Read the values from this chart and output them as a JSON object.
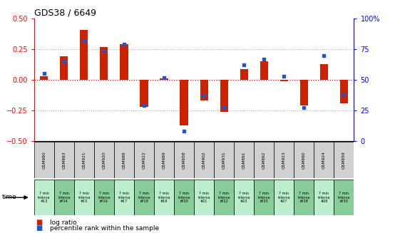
{
  "title": "GDS38 / 6649",
  "samples": [
    "GSM980",
    "GSM863",
    "GSM921",
    "GSM920",
    "GSM988",
    "GSM922",
    "GSM989",
    "GSM858",
    "GSM902",
    "GSM931",
    "GSM861",
    "GSM862",
    "GSM923",
    "GSM860",
    "GSM924",
    "GSM859"
  ],
  "log_ratio": [
    0.03,
    0.19,
    0.41,
    0.27,
    0.29,
    -0.22,
    0.01,
    -0.37,
    -0.17,
    -0.26,
    0.09,
    0.15,
    -0.01,
    -0.21,
    0.13,
    -0.19
  ],
  "percentile": [
    55,
    65,
    82,
    74,
    79,
    29,
    52,
    8,
    37,
    27,
    62,
    67,
    53,
    27,
    70,
    38
  ],
  "time_line1": [
    "7 min",
    "7 min",
    "7 min",
    "7 min",
    "7 min",
    "7 min",
    "7 min",
    "7 min",
    "7 min",
    "7 min",
    "7 min",
    "7 min",
    "7 min",
    "7 min",
    "7 min",
    "7 min"
  ],
  "time_line2": [
    "interva",
    "interva",
    "interva",
    "interva",
    "interva",
    "interva",
    "interva",
    "interva",
    "interva",
    "interva",
    "interva",
    "interva",
    "interva",
    "interva",
    "interva",
    "interva"
  ],
  "time_line3": [
    "#13",
    "l#14",
    "#15",
    "l#16",
    "#17",
    "l#18",
    "#19",
    "l#20",
    "#21",
    "l#22",
    "#23",
    "l#25",
    "#27",
    "l#28",
    "#29",
    "l#30"
  ],
  "ylim": [
    -0.5,
    0.5
  ],
  "y2lim": [
    0,
    100
  ],
  "bar_color": "#cc2200",
  "dot_color": "#2255cc",
  "bg_color_gsm": "#d0d0d0",
  "bg_color_time_light": "#bbeecc",
  "bg_color_time_dark": "#88cc99",
  "zero_line_color": "#cc0000",
  "hline_color": "#aaaaaa",
  "yticks_left": [
    -0.5,
    -0.25,
    0.0,
    0.25,
    0.5
  ],
  "yticks_right": [
    0,
    25,
    50,
    75,
    100
  ],
  "hlines": [
    -0.25,
    0.25
  ]
}
